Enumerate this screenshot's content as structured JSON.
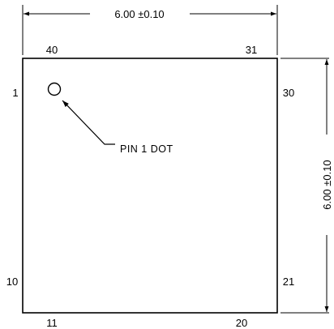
{
  "dimensions": {
    "width_label": "6.00 ±0.10",
    "height_label": "6.00 ±0.10"
  },
  "pins": {
    "top_left": "40",
    "top_right": "31",
    "left_top": "1",
    "left_bottom": "10",
    "right_top": "30",
    "right_bottom": "21",
    "bottom_left": "11",
    "bottom_right": "20"
  },
  "callout": {
    "label": "PIN 1 DOT"
  },
  "colors": {
    "line": "#000000",
    "background": "#ffffff"
  }
}
